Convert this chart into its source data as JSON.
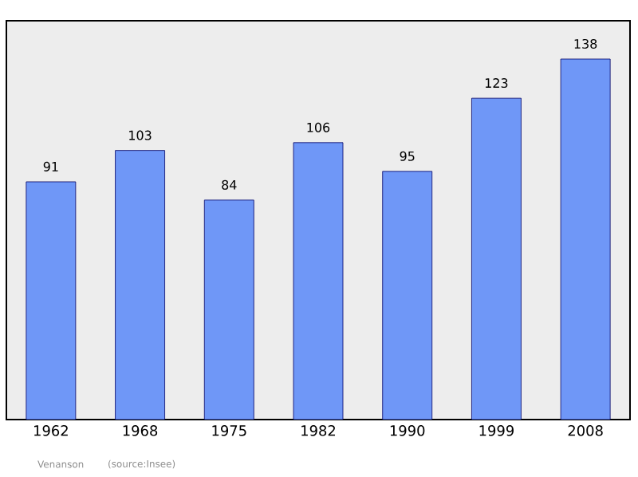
{
  "chart_data": {
    "type": "bar",
    "categories": [
      "1962",
      "1968",
      "1975",
      "1982",
      "1990",
      "1999",
      "2008"
    ],
    "values": [
      91,
      103,
      84,
      106,
      95,
      123,
      138
    ],
    "color": "#6f97f7",
    "data_labels": true,
    "grid": false,
    "tick_labels": "x",
    "annotations": [
      "Venanson",
      "(source:Insee)"
    ]
  }
}
